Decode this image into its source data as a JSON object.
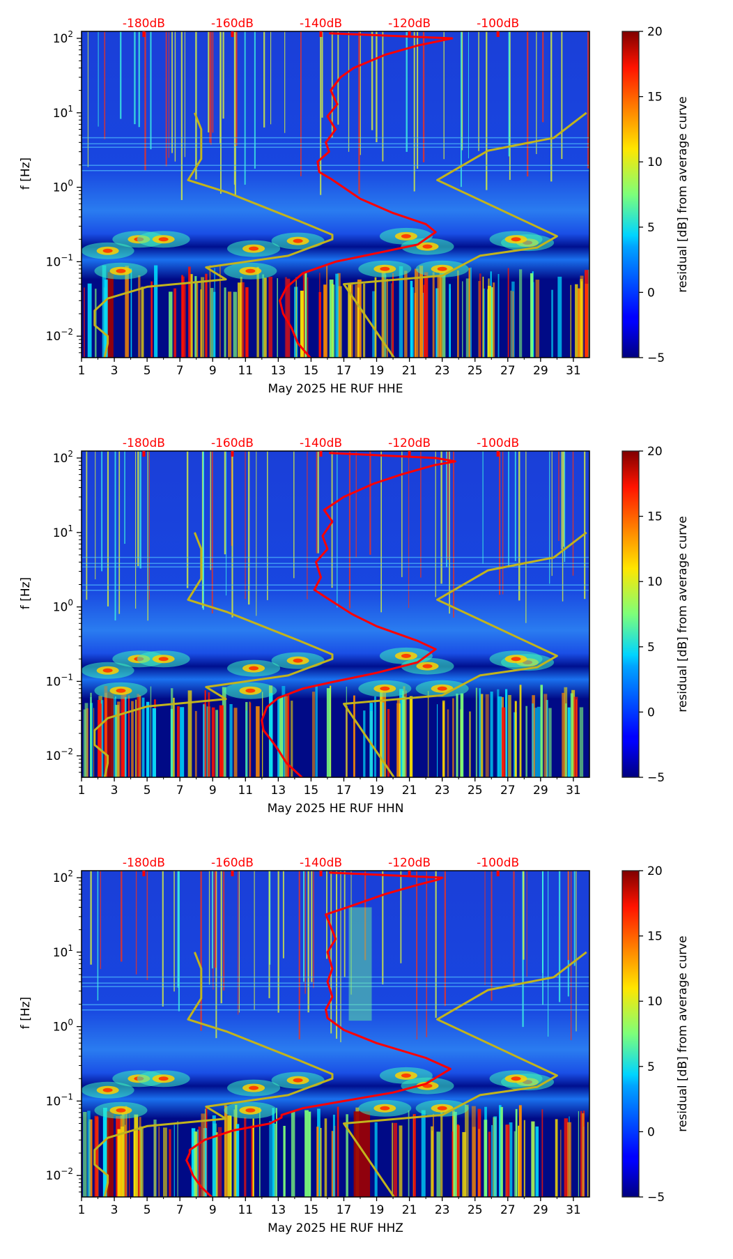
{
  "chart_data": [
    {
      "type": "heatmap",
      "title": "",
      "xlabel": "May 2025 HE RUF  HHE",
      "ylabel": "f [Hz]",
      "yscale": "log",
      "ylim": [
        0.005,
        125
      ],
      "xlim": [
        1,
        32
      ],
      "x_ticks": [
        "1",
        "3",
        "5",
        "7",
        "9",
        "11",
        "13",
        "15",
        "17",
        "19",
        "21",
        "23",
        "25",
        "27",
        "29",
        "31"
      ],
      "y_ticks": [
        {
          "value": 100,
          "base": "10",
          "exp": "2"
        },
        {
          "value": 10,
          "base": "10",
          "exp": "1"
        },
        {
          "value": 1,
          "base": "10",
          "exp": "0"
        },
        {
          "value": 0.1,
          "base": "10",
          "exp": "−1"
        },
        {
          "value": 0.01,
          "base": "10",
          "exp": "−2"
        }
      ],
      "top_axis_ticks": [
        {
          "label": "-180dB",
          "x": 4.8
        },
        {
          "label": "-160dB",
          "x": 10.2
        },
        {
          "label": "-140dB",
          "x": 15.6
        },
        {
          "label": "-120dB",
          "x": 21.0
        },
        {
          "label": "-100dB",
          "x": 26.4
        }
      ],
      "colorbar": {
        "label": "residual [dB] from average curve",
        "range": [
          -5,
          20
        ],
        "ticks": [
          "20",
          "15",
          "10",
          "5",
          "0",
          "−5"
        ],
        "colormap": "jet"
      },
      "series": [
        {
          "name": "average PSD curve",
          "color": "#ff0000",
          "points": [
            [
              15.0,
              0.005
            ],
            [
              14.2,
              0.008
            ],
            [
              13.8,
              0.013
            ],
            [
              13.3,
              0.02
            ],
            [
              13.1,
              0.03
            ],
            [
              13.5,
              0.045
            ],
            [
              14.5,
              0.07
            ],
            [
              16.5,
              0.1
            ],
            [
              19,
              0.13
            ],
            [
              21.5,
              0.17
            ],
            [
              22.6,
              0.25
            ],
            [
              22.0,
              0.32
            ],
            [
              20,
              0.45
            ],
            [
              18,
              0.7
            ],
            [
              16.2,
              1.3
            ],
            [
              15.5,
              1.6
            ],
            [
              15.4,
              2.2
            ],
            [
              16.1,
              3
            ],
            [
              15.9,
              4
            ],
            [
              16.5,
              6
            ],
            [
              16.0,
              9
            ],
            [
              16.6,
              13
            ],
            [
              16.2,
              20
            ],
            [
              16.8,
              30
            ],
            [
              17.6,
              40
            ],
            [
              19.5,
              60
            ],
            [
              21.5,
              80
            ],
            [
              23.6,
              100
            ],
            [
              16.1,
              117
            ]
          ]
        },
        {
          "name": "noise model curve (left)",
          "color": "#c2b41c",
          "points": [
            [
              2.4,
              0.005
            ],
            [
              2.6,
              0.008
            ],
            [
              2.6,
              0.01
            ],
            [
              1.8,
              0.014
            ],
            [
              1.8,
              0.022
            ],
            [
              2.6,
              0.032
            ],
            [
              5.0,
              0.046
            ],
            [
              9.8,
              0.058
            ],
            [
              8.6,
              0.084
            ],
            [
              13.6,
              0.12
            ],
            [
              16.3,
              0.2
            ],
            [
              16.3,
              0.23
            ],
            [
              14.3,
              0.35
            ],
            [
              9.9,
              0.85
            ],
            [
              7.5,
              1.25
            ],
            [
              8.3,
              2.4
            ],
            [
              8.3,
              6
            ],
            [
              7.9,
              10
            ]
          ]
        },
        {
          "name": "noise model curve (right)",
          "color": "#c2b41c",
          "points": [
            [
              20.1,
              0.005
            ],
            [
              17.0,
              0.05
            ],
            [
              23.0,
              0.065
            ],
            [
              25.3,
              0.12
            ],
            [
              28.8,
              0.155
            ],
            [
              30.0,
              0.22
            ],
            [
              22.7,
              1.25
            ],
            [
              25.8,
              3.1
            ],
            [
              29.8,
              4.6
            ],
            [
              31.8,
              10
            ]
          ]
        }
      ]
    },
    {
      "type": "heatmap",
      "title": "",
      "xlabel": "May 2025 HE RUF  HHN",
      "ylabel": "f [Hz]",
      "yscale": "log",
      "ylim": [
        0.005,
        125
      ],
      "xlim": [
        1,
        32
      ],
      "x_ticks": [
        "1",
        "3",
        "5",
        "7",
        "9",
        "11",
        "13",
        "15",
        "17",
        "19",
        "21",
        "23",
        "25",
        "27",
        "29",
        "31"
      ],
      "y_ticks": [
        {
          "value": 100,
          "base": "10",
          "exp": "2"
        },
        {
          "value": 10,
          "base": "10",
          "exp": "1"
        },
        {
          "value": 1,
          "base": "10",
          "exp": "0"
        },
        {
          "value": 0.1,
          "base": "10",
          "exp": "−1"
        },
        {
          "value": 0.01,
          "base": "10",
          "exp": "−2"
        }
      ],
      "top_axis_ticks": [
        {
          "label": "-180dB",
          "x": 4.8
        },
        {
          "label": "-160dB",
          "x": 10.2
        },
        {
          "label": "-140dB",
          "x": 15.6
        },
        {
          "label": "-120dB",
          "x": 21.0
        },
        {
          "label": "-100dB",
          "x": 26.4
        }
      ],
      "colorbar": {
        "label": "residual [dB] from average curve",
        "range": [
          -5,
          20
        ],
        "ticks": [
          "20",
          "15",
          "10",
          "5",
          "0",
          "−5"
        ],
        "colormap": "jet"
      },
      "series": [
        {
          "name": "average PSD curve",
          "color": "#ff0000",
          "points": [
            [
              14.5,
              0.005
            ],
            [
              13.5,
              0.008
            ],
            [
              13.0,
              0.012
            ],
            [
              12.6,
              0.016
            ],
            [
              12.1,
              0.022
            ],
            [
              12.0,
              0.03
            ],
            [
              12.3,
              0.045
            ],
            [
              13.0,
              0.06
            ],
            [
              14.5,
              0.08
            ],
            [
              16.5,
              0.1
            ],
            [
              19,
              0.13
            ],
            [
              21.5,
              0.18
            ],
            [
              22.6,
              0.27
            ],
            [
              21.5,
              0.35
            ],
            [
              19,
              0.55
            ],
            [
              17.5,
              0.8
            ],
            [
              16.0,
              1.3
            ],
            [
              15.2,
              1.7
            ],
            [
              15.6,
              2.5
            ],
            [
              15.3,
              4
            ],
            [
              16.0,
              6
            ],
            [
              15.7,
              9
            ],
            [
              16.3,
              14
            ],
            [
              15.8,
              20
            ],
            [
              17.0,
              30
            ],
            [
              18.8,
              45
            ],
            [
              20.5,
              60
            ],
            [
              22.5,
              80
            ],
            [
              23.8,
              90
            ],
            [
              22.6,
              100
            ],
            [
              16.1,
              117
            ]
          ]
        },
        {
          "name": "noise model curve (left)",
          "color": "#c2b41c",
          "points": [
            [
              2.4,
              0.005
            ],
            [
              2.6,
              0.008
            ],
            [
              2.6,
              0.01
            ],
            [
              1.8,
              0.014
            ],
            [
              1.8,
              0.022
            ],
            [
              2.6,
              0.032
            ],
            [
              5.0,
              0.046
            ],
            [
              9.8,
              0.058
            ],
            [
              8.6,
              0.084
            ],
            [
              13.6,
              0.12
            ],
            [
              16.3,
              0.2
            ],
            [
              16.3,
              0.23
            ],
            [
              14.3,
              0.35
            ],
            [
              9.9,
              0.85
            ],
            [
              7.5,
              1.25
            ],
            [
              8.3,
              2.4
            ],
            [
              8.3,
              6
            ],
            [
              7.9,
              10
            ]
          ]
        },
        {
          "name": "noise model curve (right)",
          "color": "#c2b41c",
          "points": [
            [
              20.1,
              0.005
            ],
            [
              17.0,
              0.05
            ],
            [
              23.0,
              0.065
            ],
            [
              25.3,
              0.12
            ],
            [
              28.8,
              0.155
            ],
            [
              30.0,
              0.22
            ],
            [
              22.7,
              1.25
            ],
            [
              25.8,
              3.1
            ],
            [
              29.8,
              4.6
            ],
            [
              31.8,
              10
            ]
          ]
        }
      ]
    },
    {
      "type": "heatmap",
      "title": "",
      "xlabel": "May 2025 HE RUF  HHZ",
      "ylabel": "f [Hz]",
      "yscale": "log",
      "ylim": [
        0.005,
        125
      ],
      "xlim": [
        1,
        32
      ],
      "x_ticks": [
        "1",
        "3",
        "5",
        "7",
        "9",
        "11",
        "13",
        "15",
        "17",
        "19",
        "21",
        "23",
        "25",
        "27",
        "29",
        "31"
      ],
      "y_ticks": [
        {
          "value": 100,
          "base": "10",
          "exp": "2"
        },
        {
          "value": 10,
          "base": "10",
          "exp": "1"
        },
        {
          "value": 1,
          "base": "10",
          "exp": "0"
        },
        {
          "value": 0.1,
          "base": "10",
          "exp": "−1"
        },
        {
          "value": 0.01,
          "base": "10",
          "exp": "−2"
        }
      ],
      "top_axis_ticks": [
        {
          "label": "-180dB",
          "x": 4.8
        },
        {
          "label": "-160dB",
          "x": 10.2
        },
        {
          "label": "-140dB",
          "x": 15.6
        },
        {
          "label": "-120dB",
          "x": 21.0
        },
        {
          "label": "-100dB",
          "x": 26.4
        }
      ],
      "colorbar": {
        "label": "residual [dB] from average curve",
        "range": [
          -5,
          20
        ],
        "ticks": [
          "20",
          "15",
          "10",
          "5",
          "0",
          "−5"
        ],
        "colormap": "jet"
      },
      "series": [
        {
          "name": "average PSD curve",
          "color": "#ff0000",
          "points": [
            [
              9.0,
              0.005
            ],
            [
              8.3,
              0.007
            ],
            [
              7.8,
              0.01
            ],
            [
              7.6,
              0.013
            ],
            [
              7.4,
              0.016
            ],
            [
              7.6,
              0.02
            ],
            [
              7.6,
              0.022
            ],
            [
              8.5,
              0.03
            ],
            [
              10.2,
              0.04
            ],
            [
              12.5,
              0.05
            ],
            [
              13.2,
              0.06
            ],
            [
              13.2,
              0.065
            ],
            [
              14.5,
              0.08
            ],
            [
              17,
              0.1
            ],
            [
              20,
              0.13
            ],
            [
              22,
              0.17
            ],
            [
              23.5,
              0.27
            ],
            [
              22,
              0.38
            ],
            [
              19,
              0.6
            ],
            [
              17,
              0.9
            ],
            [
              16.0,
              1.3
            ],
            [
              15.9,
              1.7
            ],
            [
              16.3,
              2.5
            ],
            [
              16.0,
              4
            ],
            [
              16.3,
              6
            ],
            [
              16.0,
              10
            ],
            [
              16.5,
              15
            ],
            [
              16.2,
              22
            ],
            [
              15.9,
              32
            ],
            [
              17.5,
              42
            ],
            [
              19.5,
              60
            ],
            [
              21.5,
              80
            ],
            [
              22.8,
              95
            ],
            [
              23.0,
              100
            ],
            [
              16.1,
              117
            ]
          ]
        },
        {
          "name": "noise model curve (left)",
          "color": "#c2b41c",
          "points": [
            [
              2.4,
              0.005
            ],
            [
              2.6,
              0.008
            ],
            [
              2.6,
              0.01
            ],
            [
              1.8,
              0.014
            ],
            [
              1.8,
              0.022
            ],
            [
              2.6,
              0.032
            ],
            [
              5.0,
              0.046
            ],
            [
              9.8,
              0.058
            ],
            [
              8.6,
              0.084
            ],
            [
              13.6,
              0.12
            ],
            [
              16.3,
              0.2
            ],
            [
              16.3,
              0.23
            ],
            [
              14.3,
              0.35
            ],
            [
              9.9,
              0.85
            ],
            [
              7.5,
              1.25
            ],
            [
              8.3,
              2.4
            ],
            [
              8.3,
              6
            ],
            [
              7.9,
              10
            ]
          ]
        },
        {
          "name": "noise model curve (right)",
          "color": "#c2b41c",
          "points": [
            [
              20.1,
              0.005
            ],
            [
              17.0,
              0.05
            ],
            [
              23.0,
              0.065
            ],
            [
              25.3,
              0.12
            ],
            [
              28.8,
              0.155
            ],
            [
              30.0,
              0.22
            ],
            [
              22.7,
              1.25
            ],
            [
              25.8,
              3.1
            ],
            [
              29.8,
              4.6
            ],
            [
              31.8,
              10
            ]
          ]
        }
      ]
    }
  ]
}
